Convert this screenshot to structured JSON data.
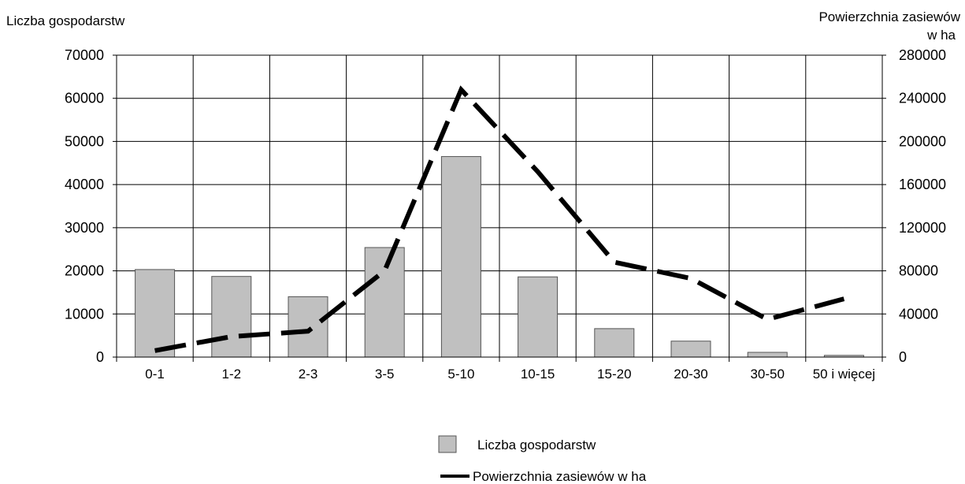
{
  "chart_data": {
    "type": "bar",
    "categories": [
      "0-1",
      "1-2",
      "2-3",
      "3-5",
      "5-10",
      "10-15",
      "15-20",
      "20-30",
      "30-50",
      "50 i więcej"
    ],
    "y_left_label": "Liczba gospodarstw",
    "y_right_label_line1": "Powierzchnia zasiewów",
    "y_right_label_line2": "w ha",
    "y_left_ticks": [
      "0",
      "10000",
      "20000",
      "30000",
      "40000",
      "50000",
      "60000",
      "70000"
    ],
    "y_right_ticks": [
      "0",
      "40000",
      "80000",
      "120000",
      "160000",
      "200000",
      "240000",
      "280000"
    ],
    "ylim_left": [
      0,
      70000
    ],
    "ylim_right": [
      0,
      280000
    ],
    "grid": true,
    "legend_position": "bottom-center",
    "series": [
      {
        "name": "Liczba gospodarstw",
        "kind": "bar",
        "axis": "left",
        "color": "#c0c0c0",
        "values": [
          20300,
          18700,
          14000,
          25400,
          46500,
          18600,
          6600,
          3700,
          1100,
          400
        ]
      },
      {
        "name": "Powierzchnia zasiewów w ha",
        "kind": "line",
        "axis": "right",
        "style": "dashed",
        "color": "#000000",
        "values": [
          6000,
          19000,
          24000,
          80000,
          248000,
          172000,
          88000,
          73000,
          35000,
          54000
        ]
      }
    ]
  }
}
